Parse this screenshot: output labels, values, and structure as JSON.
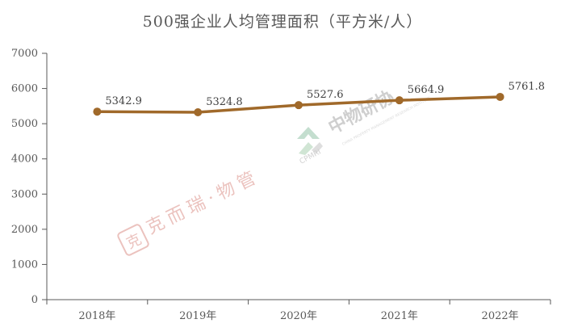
{
  "chart_data": {
    "type": "line",
    "title": "500强企业人均管理面积（平方米/人）",
    "categories": [
      "2018年",
      "2019年",
      "2020年",
      "2021年",
      "2022年"
    ],
    "series": [
      {
        "values": [
          5342.9,
          5324.8,
          5527.6,
          5664.9,
          5761.8
        ],
        "data_labels": [
          "5342.9",
          "5324.8",
          "5527.6",
          "5664.9",
          "5761.8"
        ],
        "color": "#a0692a"
      }
    ],
    "y_ticks": [
      0,
      1000,
      2000,
      3000,
      4000,
      5000,
      6000,
      7000
    ],
    "ylim": [
      0,
      7000
    ],
    "xlabel": "",
    "ylabel": "",
    "grid": false,
    "legend": "none"
  },
  "watermarks": {
    "cpmri_logo_text": "中物研协",
    "cpmri_abbrev": "CPMRI",
    "cpmri_english": "CHINA PROPERTY MANAGEMENT RESEARCH INSTITUTE",
    "kerui_text": "克而瑞·物管",
    "kerui_seal": "克"
  },
  "colors": {
    "axis": "#595959",
    "line": "#a0692a",
    "text": "#404040"
  }
}
